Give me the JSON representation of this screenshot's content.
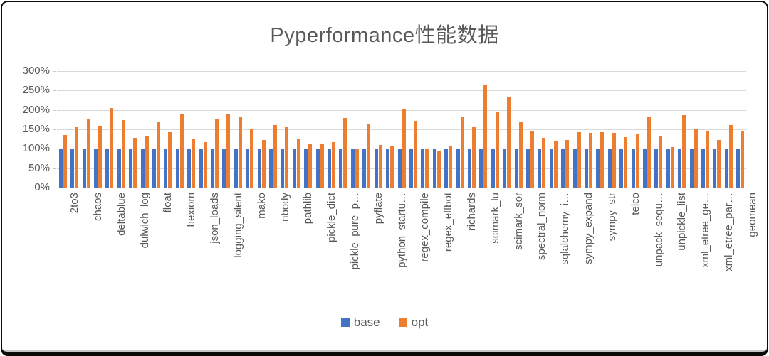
{
  "title": "Pyperformance性能数据",
  "legend": {
    "items": [
      {
        "label": "base",
        "color": "#4472C4"
      },
      {
        "label": "opt",
        "color": "#ED7D31"
      }
    ]
  },
  "colors": {
    "base_series": "#4472C4",
    "opt_series": "#ED7D31",
    "gridline": "#D9D9D9",
    "axis_text": "#595959",
    "frame_border": "#0A0A0A"
  },
  "chart_data": {
    "type": "bar",
    "title": "Pyperformance性能数据",
    "xlabel": "",
    "ylabel": "",
    "ylim": [
      0,
      300
    ],
    "yticks": [
      "0%",
      "50%",
      "100%",
      "150%",
      "200%",
      "250%",
      "300%"
    ],
    "ytick_values": [
      0,
      50,
      100,
      150,
      200,
      250,
      300
    ],
    "grid": true,
    "legend_position": "bottom",
    "x_labels_rotated_90": true,
    "unlabeled_categories_shown_blank": true,
    "categories": [
      "2to3",
      "",
      "chaos",
      "",
      "deltablue",
      "",
      "dulwich_log",
      "",
      "float",
      "",
      "hexiom",
      "",
      "json_loads",
      "",
      "logging_silent",
      "",
      "mako",
      "",
      "nbody",
      "",
      "pathlib",
      "",
      "pickle_dict",
      "",
      "pickle_pure_p…",
      "",
      "pyflate",
      "",
      "python_startu…",
      "",
      "regex_compile",
      "",
      "regex_effbot",
      "",
      "richards",
      "",
      "scimark_lu",
      "",
      "scimark_sor",
      "",
      "spectral_norm",
      "",
      "sqlalchemy_i…",
      "",
      "sympy_expand",
      "",
      "sympy_str",
      "",
      "telco",
      "",
      "unpack_sequ…",
      "",
      "unpickle_list",
      "",
      "xml_etree_ge…",
      "",
      "xml_etree_par…",
      "",
      "geomean"
    ],
    "series": [
      {
        "name": "base",
        "values": [
          100,
          100,
          100,
          100,
          100,
          100,
          100,
          100,
          100,
          100,
          100,
          100,
          100,
          100,
          100,
          100,
          100,
          100,
          100,
          100,
          100,
          100,
          100,
          100,
          100,
          100,
          100,
          100,
          100,
          100,
          100,
          100,
          100,
          100,
          100,
          100,
          100,
          100,
          100,
          100,
          100,
          100,
          100,
          100,
          100,
          100,
          100,
          100,
          100,
          100,
          100,
          100,
          100,
          100,
          100,
          100,
          100,
          100,
          100
        ]
      },
      {
        "name": "opt",
        "values": [
          135,
          156,
          177,
          157,
          205,
          174,
          128,
          131,
          168,
          142,
          191,
          127,
          117,
          175,
          188,
          181,
          150,
          123,
          161,
          156,
          125,
          114,
          111,
          117,
          180,
          101,
          163,
          110,
          107,
          202,
          172,
          100,
          94,
          108,
          181,
          155,
          263,
          196,
          234,
          168,
          146,
          128,
          118,
          123,
          142,
          140,
          143,
          141,
          130,
          137,
          181,
          131,
          104,
          186,
          152,
          146,
          123,
          161,
          145
        ]
      }
    ]
  }
}
